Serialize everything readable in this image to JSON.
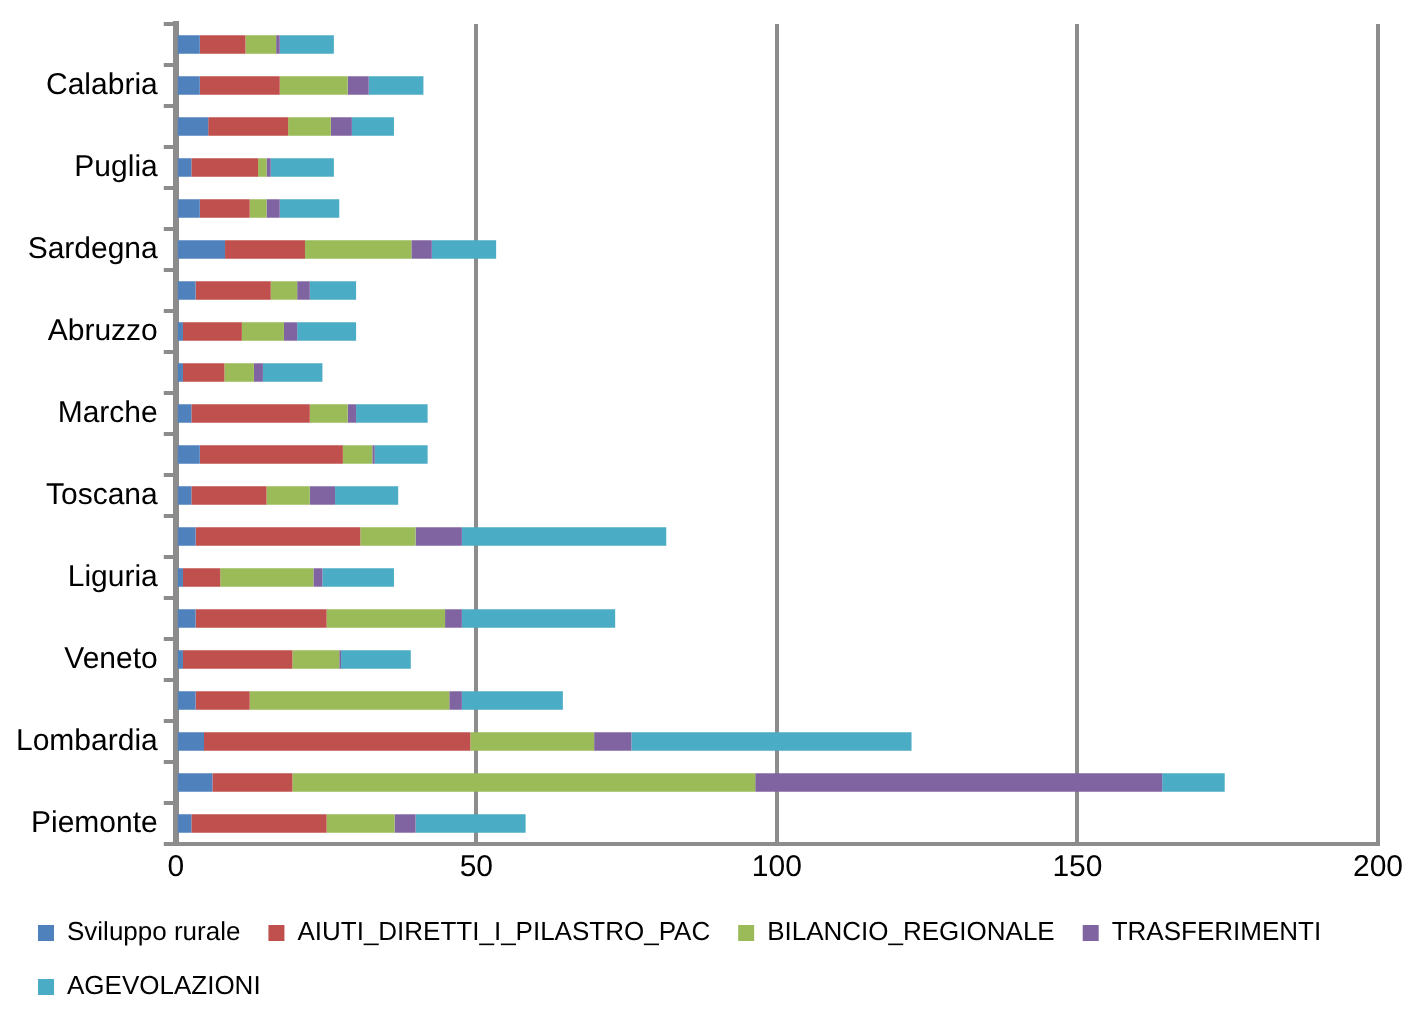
{
  "chart_data": {
    "type": "bar",
    "orientation": "horizontal",
    "stacked": true,
    "categories": [
      null,
      "Calabria",
      null,
      "Puglia",
      null,
      "Sardegna",
      null,
      "Abruzzo",
      null,
      "Marche",
      null,
      "Toscana",
      null,
      "Liguria",
      null,
      "Veneto",
      null,
      "Lombardia",
      null,
      "Piemonte"
    ],
    "series": [
      {
        "name": "Sviluppo rurale",
        "color": "#4f81bd",
        "values": [
          4.0,
          4.0,
          5.4,
          2.6,
          4.0,
          8.2,
          3.3,
          1.2,
          1.2,
          2.6,
          4.0,
          2.6,
          3.3,
          1.2,
          3.3,
          1.2,
          3.3,
          4.7,
          6.1,
          2.6
        ]
      },
      {
        "name": "AIUTI_DIRETTI_I_PILASTRO_PAC",
        "color": "#c0504d",
        "values": [
          7.6,
          13.3,
          13.3,
          11.1,
          8.3,
          13.3,
          12.5,
          9.8,
          6.9,
          19.7,
          23.8,
          12.5,
          27.4,
          6.2,
          21.8,
          18.2,
          9.0,
          44.3,
          13.3,
          22.5
        ]
      },
      {
        "name": "BILANCIO_REGIONALE",
        "color": "#9bbb59",
        "values": [
          5.1,
          11.3,
          7.1,
          1.4,
          2.8,
          17.7,
          4.4,
          7.0,
          4.9,
          6.3,
          4.9,
          7.2,
          9.2,
          15.5,
          19.7,
          7.8,
          33.2,
          20.6,
          77.0,
          11.3
        ]
      },
      {
        "name": "TRASFERIMENTI",
        "color": "#8064a2",
        "values": [
          0.6,
          3.5,
          3.5,
          0.7,
          2.2,
          3.4,
          2.1,
          2.2,
          1.5,
          1.4,
          0.4,
          4.2,
          7.7,
          1.5,
          2.8,
          0.3,
          2.1,
          6.2,
          67.7,
          3.5
        ]
      },
      {
        "name": "AGEVOLAZIONI",
        "color": "#4bacc6",
        "values": [
          9.0,
          9.1,
          7.0,
          10.5,
          9.9,
          10.7,
          7.7,
          9.8,
          9.9,
          11.9,
          8.8,
          10.5,
          34.0,
          11.9,
          25.5,
          11.6,
          16.8,
          46.6,
          10.4,
          18.3
        ]
      }
    ],
    "xlim": [
      0,
      200
    ],
    "xticks": [
      0,
      50,
      100,
      150,
      200
    ],
    "grid": "x",
    "legend": "bottom"
  }
}
